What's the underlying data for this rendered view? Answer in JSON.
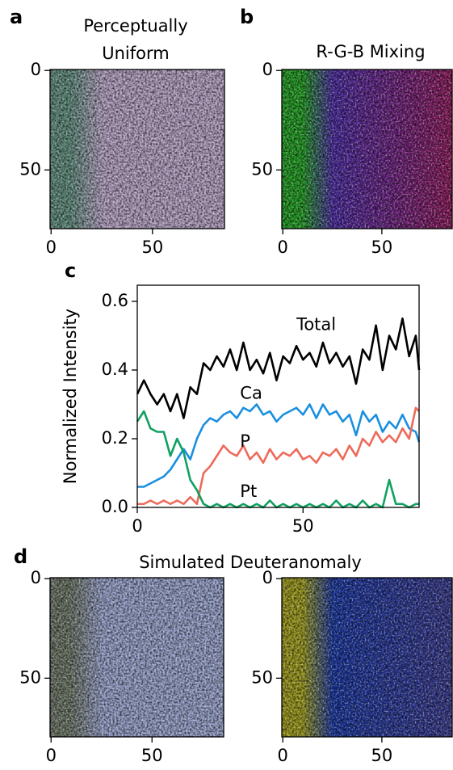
{
  "chart_data": [
    {
      "type": "image",
      "panel_label": "a",
      "title_lines": [
        "Perceptually",
        "Uniform"
      ],
      "xlim": [
        -0.5,
        85.5
      ],
      "ylim": [
        79.5,
        -0.5
      ],
      "xticks": [
        0,
        50
      ],
      "yticks": [
        0,
        50
      ],
      "colors": [
        "#5f8c7c",
        "#b6a3c4"
      ]
    },
    {
      "type": "image",
      "panel_label": "b",
      "title_lines": [
        "R-G-B Mixing"
      ],
      "xlim": [
        -0.5,
        85.5
      ],
      "ylim": [
        79.5,
        -0.5
      ],
      "xticks": [
        0,
        50
      ],
      "yticks": [
        0,
        50
      ],
      "colors": [
        "#1f9a1f",
        "#4a2aa0",
        "#8a1a5a"
      ]
    },
    {
      "type": "line",
      "panel_label": "c",
      "ylabel": "Normalized Intensity",
      "xlim": [
        0,
        85
      ],
      "ylim": [
        0,
        0.647
      ],
      "xticks": [
        0,
        50
      ],
      "yticks": [
        {
          "value": 0,
          "label": "0.0"
        },
        0.2,
        0.4,
        0.6
      ],
      "x": [
        0,
        2,
        4,
        6,
        8,
        10,
        12,
        14,
        16,
        18,
        20,
        22,
        24,
        26,
        28,
        30,
        32,
        34,
        36,
        38,
        40,
        42,
        44,
        46,
        48,
        50,
        52,
        54,
        56,
        58,
        60,
        62,
        64,
        66,
        68,
        70,
        72,
        74,
        76,
        78,
        80,
        82,
        84,
        85
      ],
      "series": [
        {
          "name": "Total",
          "color": "#000000",
          "values": [
            0.33,
            0.37,
            0.33,
            0.3,
            0.33,
            0.28,
            0.33,
            0.26,
            0.35,
            0.33,
            0.42,
            0.4,
            0.44,
            0.41,
            0.46,
            0.4,
            0.48,
            0.4,
            0.43,
            0.39,
            0.45,
            0.37,
            0.44,
            0.42,
            0.47,
            0.43,
            0.45,
            0.41,
            0.48,
            0.42,
            0.45,
            0.41,
            0.44,
            0.36,
            0.46,
            0.43,
            0.53,
            0.4,
            0.5,
            0.46,
            0.55,
            0.44,
            0.5,
            0.4
          ]
        },
        {
          "name": "Ca",
          "color": "#1a8fe0",
          "values": [
            0.06,
            0.06,
            0.07,
            0.08,
            0.09,
            0.11,
            0.14,
            0.17,
            0.14,
            0.2,
            0.24,
            0.26,
            0.25,
            0.27,
            0.28,
            0.26,
            0.29,
            0.28,
            0.3,
            0.27,
            0.28,
            0.25,
            0.27,
            0.28,
            0.29,
            0.27,
            0.3,
            0.26,
            0.3,
            0.27,
            0.28,
            0.25,
            0.27,
            0.21,
            0.28,
            0.25,
            0.27,
            0.22,
            0.25,
            0.23,
            0.27,
            0.23,
            0.22,
            0.19
          ]
        },
        {
          "name": "P",
          "color": "#ee6a5a",
          "values": [
            0.01,
            0.01,
            0.02,
            0.01,
            0.02,
            0.01,
            0.02,
            0.01,
            0.03,
            0.01,
            0.1,
            0.12,
            0.15,
            0.18,
            0.16,
            0.15,
            0.18,
            0.14,
            0.16,
            0.13,
            0.17,
            0.14,
            0.16,
            0.15,
            0.17,
            0.14,
            0.15,
            0.13,
            0.16,
            0.15,
            0.17,
            0.14,
            0.18,
            0.15,
            0.2,
            0.18,
            0.22,
            0.19,
            0.21,
            0.19,
            0.23,
            0.2,
            0.29,
            0.28
          ]
        },
        {
          "name": "Pt",
          "color": "#10a060",
          "values": [
            0.25,
            0.28,
            0.23,
            0.22,
            0.22,
            0.15,
            0.2,
            0.16,
            0.08,
            0.05,
            0.01,
            0.0,
            0.01,
            0.0,
            0.01,
            0.0,
            0.01,
            0.0,
            0.01,
            0.0,
            0.02,
            0.0,
            0.01,
            0.0,
            0.01,
            0.0,
            0.01,
            0.0,
            0.01,
            0.0,
            0.02,
            0.0,
            0.01,
            0.0,
            0.02,
            0.0,
            0.01,
            0.0,
            0.08,
            0.01,
            0.01,
            0.0,
            0.01,
            0.01
          ]
        }
      ]
    },
    {
      "type": "image",
      "panel_label": "d",
      "title_lines": [
        "Simulated Deuteranomaly"
      ],
      "xlim": [
        -0.5,
        85.5
      ],
      "ylim": [
        79.5,
        -0.5
      ],
      "xticks": [
        0,
        50
      ],
      "yticks": [
        0,
        50
      ],
      "colors": [
        "#6c7566",
        "#98a2cc"
      ]
    },
    {
      "type": "image",
      "xlim": [
        -0.5,
        85.5
      ],
      "ylim": [
        79.5,
        -0.5
      ],
      "xticks": [
        0,
        50
      ],
      "yticks": [
        0,
        50
      ],
      "colors": [
        "#9c9a1a",
        "#1a36a0",
        "#3a3a8a"
      ]
    }
  ]
}
